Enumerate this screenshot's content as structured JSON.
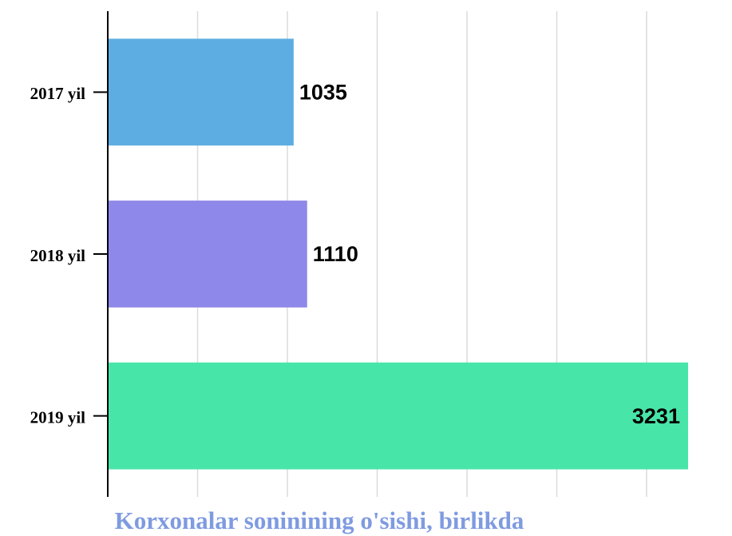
{
  "chart_data": {
    "type": "barh",
    "title": "Korxonalar soninining o'sishi, birlikda",
    "categories": [
      "2017 yil",
      "2018 yil",
      "2019 yil"
    ],
    "values": [
      1035,
      1110,
      3231
    ],
    "colors": [
      "#5dade2",
      "#8e88ea",
      "#48e5a8"
    ],
    "xlim": [
      0,
      3400
    ],
    "xticks": [
      0,
      500,
      1000,
      1500,
      2000,
      2500,
      3000
    ],
    "grid": true
  }
}
